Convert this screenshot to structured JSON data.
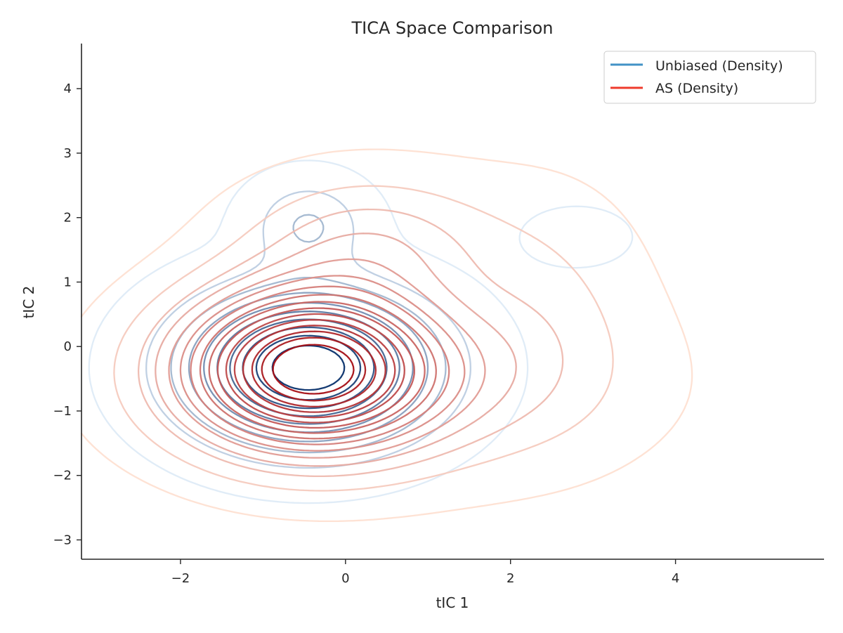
{
  "chart_data": {
    "type": "contour",
    "title": "TICA Space Comparison",
    "xlabel": "tIC 1",
    "ylabel": "tIC 2",
    "xlim": [
      -3.2,
      5.8
    ],
    "ylim": [
      -3.3,
      4.7
    ],
    "xticks": [
      -2,
      0,
      2,
      4
    ],
    "yticks": [
      -3,
      -2,
      -1,
      0,
      1,
      2,
      3,
      4
    ],
    "xtick_labels": [
      "−2",
      "0",
      "2",
      "4"
    ],
    "ytick_labels": [
      "−3",
      "−2",
      "−1",
      "0",
      "1",
      "2",
      "3",
      "4"
    ],
    "grid": false,
    "legend": {
      "placement": "top-right",
      "entries": [
        {
          "label": "Unbiased (Density)",
          "color": "#4292c6"
        },
        {
          "label": "AS (Density)",
          "color": "#ef3b2c"
        }
      ]
    },
    "series": [
      {
        "name": "Unbiased (Density)",
        "colormap": "Blues",
        "color_light": "#deebf7",
        "color_dark": "#08306b",
        "levels": 10,
        "components": [
          {
            "cx": -0.45,
            "cy": -0.33,
            "sx": 0.95,
            "sy": 0.75,
            "w": 1.0
          },
          {
            "cx": -0.45,
            "cy": 1.9,
            "sx": 0.45,
            "sy": 0.45,
            "w": 0.22
          },
          {
            "cx": 2.8,
            "cy": 1.7,
            "sx": 0.5,
            "sy": 0.35,
            "w": 0.05
          }
        ]
      },
      {
        "name": "AS (Density)",
        "colormap": "Reds",
        "color_light": "#fee0d2",
        "color_dark": "#a50f15",
        "levels": 16,
        "components": [
          {
            "cx": -0.45,
            "cy": -0.33,
            "sx": 1.0,
            "sy": 0.8,
            "w": 1.0
          },
          {
            "cx": 0.3,
            "cy": 1.6,
            "sx": 1.0,
            "sy": 0.7,
            "w": 0.2
          },
          {
            "cx": 2.4,
            "cy": 0.6,
            "sx": 0.8,
            "sy": 1.2,
            "w": 0.09
          },
          {
            "cx": 0.5,
            "cy": -0.6,
            "sx": 1.7,
            "sy": 0.9,
            "w": 0.2
          }
        ]
      }
    ]
  }
}
